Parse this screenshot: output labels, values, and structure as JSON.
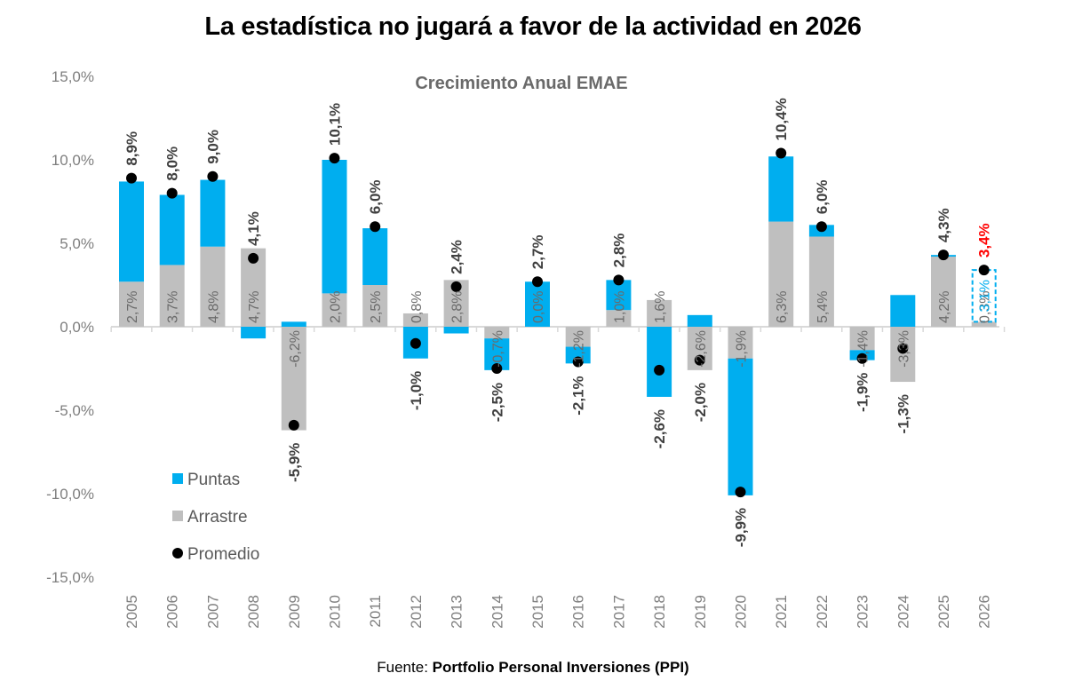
{
  "title": "La estadística no jugará a favor de la actividad en 2026",
  "source": {
    "prefix": "Fuente:",
    "name": "Portfolio Personal Inversiones (PPI)"
  },
  "colors": {
    "puntas": "#00AEEF",
    "arrastre": "#BFBFBF",
    "promedio": "#000000",
    "highlight": "#FF0000",
    "axis": "#D9D9D9"
  },
  "chart_data": {
    "type": "bar",
    "subtype": "stacked-bar-with-markers",
    "title": "Crecimiento Anual EMAE",
    "xlabel": "",
    "ylabel": "",
    "ylim": [
      -15,
      15
    ],
    "yticks": [
      15,
      10,
      5,
      0,
      -5,
      -10,
      -15
    ],
    "ytick_labels": [
      "15,0%",
      "10,0%",
      "5,0%",
      "0,0%",
      "-5,0%",
      "-10,0%",
      "-15,0%"
    ],
    "grid": false,
    "legend_position": "bottom-left",
    "categories": [
      "2005",
      "2006",
      "2007",
      "2008",
      "2009",
      "2010",
      "2011",
      "2012",
      "2013",
      "2014",
      "2015",
      "2016",
      "2017",
      "2018",
      "2019",
      "2020",
      "2021",
      "2022",
      "2023",
      "2024",
      "2025",
      "2026"
    ],
    "series": [
      {
        "name": "Arrastre",
        "kind": "bar",
        "values": [
          2.7,
          3.7,
          4.8,
          4.7,
          -6.2,
          2.0,
          2.5,
          0.8,
          2.8,
          -0.7,
          0.0,
          -1.2,
          1.0,
          1.6,
          -2.6,
          -1.9,
          6.3,
          5.4,
          -1.4,
          -3.3,
          4.2,
          0.3
        ],
        "labels": [
          "2,7%",
          "3,7%",
          "4,8%",
          "4,7%",
          "-6,2%",
          "2,0%",
          "2,5%",
          "0,8%",
          "2,8%",
          "-0,7%",
          "0,0%",
          "-1,2%",
          "1,0%",
          "1,6%",
          "-2,6%",
          "-1,9%",
          "6,3%",
          "5,4%",
          "-1,4%",
          "-3,3%",
          "4,2%",
          "0,3%"
        ]
      },
      {
        "name": "Puntas",
        "kind": "bar",
        "values": [
          6.0,
          4.2,
          4.0,
          -0.7,
          0.3,
          8.0,
          3.4,
          -1.9,
          -0.4,
          -1.9,
          2.7,
          -1.0,
          1.8,
          -4.2,
          0.7,
          -8.2,
          3.9,
          0.7,
          -0.6,
          1.9,
          0.1,
          3.1
        ],
        "labels": [
          "",
          "",
          "",
          "",
          "",
          "",
          "",
          "",
          "",
          "",
          "",
          "",
          "",
          "",
          "",
          "",
          "",
          "",
          "",
          "",
          "",
          "3,1%"
        ],
        "projected": [
          false,
          false,
          false,
          false,
          false,
          false,
          false,
          false,
          false,
          false,
          false,
          false,
          false,
          false,
          false,
          false,
          false,
          false,
          false,
          false,
          false,
          true
        ]
      },
      {
        "name": "Promedio",
        "kind": "marker",
        "values": [
          8.9,
          8.0,
          9.0,
          4.1,
          -5.9,
          10.1,
          6.0,
          -1.0,
          2.4,
          -2.5,
          2.7,
          -2.1,
          2.8,
          -2.6,
          -2.0,
          -9.9,
          10.4,
          6.0,
          -1.9,
          -1.3,
          4.3,
          3.4
        ],
        "labels": [
          "8,9%",
          "8,0%",
          "9,0%",
          "4,1%",
          "-5,9%",
          "10,1%",
          "6,0%",
          "-1,0%",
          "2,4%",
          "-2,5%",
          "2,7%",
          "-2,1%",
          "2,8%",
          "-2,6%",
          "-2,0%",
          "-9,9%",
          "10,4%",
          "6,0%",
          "-1,9%",
          "-1,3%",
          "4,3%",
          "3,4%"
        ],
        "highlighted": [
          false,
          false,
          false,
          false,
          false,
          false,
          false,
          false,
          false,
          false,
          false,
          false,
          false,
          false,
          false,
          false,
          false,
          false,
          false,
          false,
          false,
          true
        ]
      }
    ],
    "legend": [
      {
        "name": "Puntas",
        "symbol": "square",
        "color": "#00AEEF"
      },
      {
        "name": "Arrastre",
        "symbol": "square",
        "color": "#BFBFBF"
      },
      {
        "name": "Promedio",
        "symbol": "circle",
        "color": "#000000"
      }
    ]
  }
}
